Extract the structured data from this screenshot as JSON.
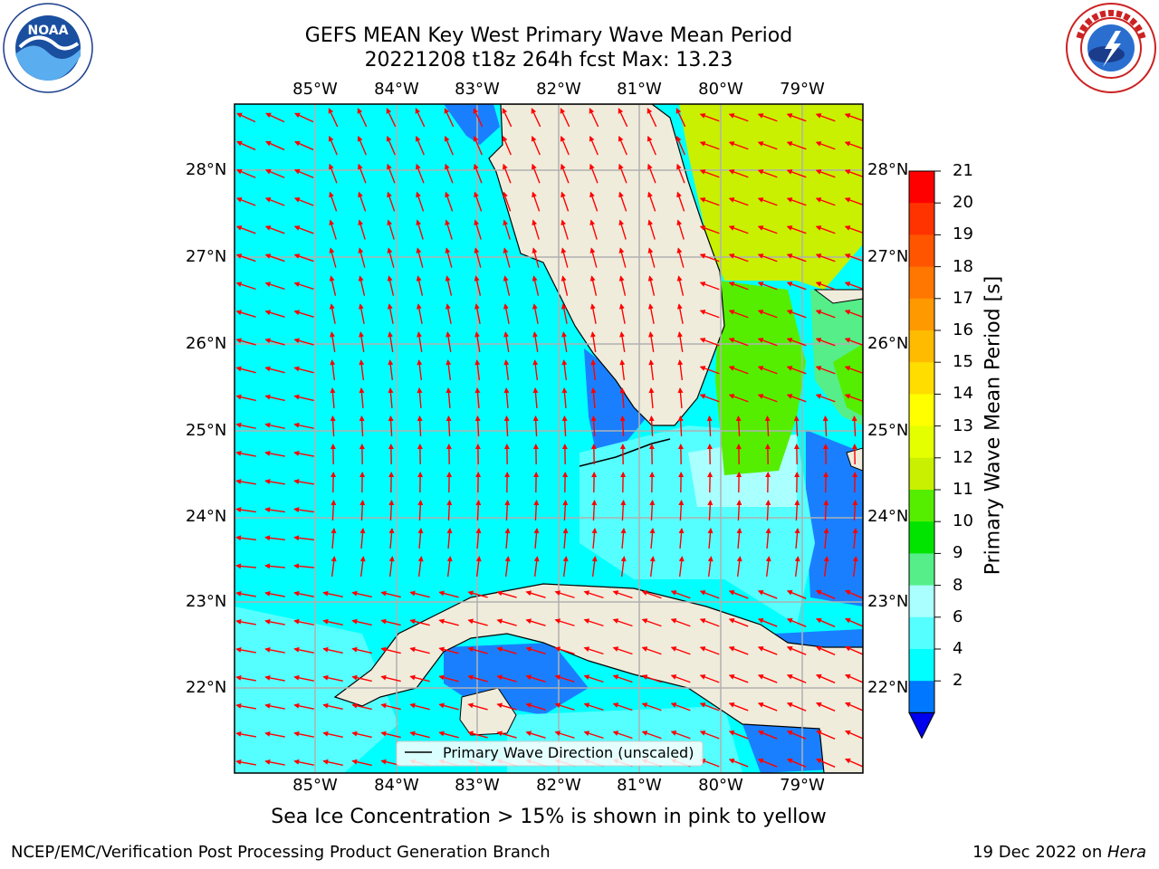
{
  "header": {
    "title_line1": "GEFS MEAN Key West Primary Wave Mean Period",
    "title_line2": "20221208 t18z 264h fcst   Max: 13.23"
  },
  "map": {
    "lon_labels": [
      "85°W",
      "84°W",
      "83°W",
      "82°W",
      "81°W",
      "80°W",
      "79°W"
    ],
    "lat_labels": [
      "28°N",
      "27°N",
      "26°N",
      "25°N",
      "24°N",
      "23°N",
      "22°N"
    ],
    "lon_range": [
      -86.0,
      -78.25
    ],
    "lat_range": [
      21.1,
      28.8
    ],
    "ocean_color": "#00ffff",
    "land_color": "#efecdc",
    "arrow_color": "#ff0000",
    "legend_label": "Primary Wave Direction (unscaled)"
  },
  "colorbar": {
    "label": "Primary Wave Mean Period [s]",
    "ticks": [
      "21",
      "20",
      "19",
      "18",
      "17",
      "16",
      "15",
      "14",
      "13",
      "12",
      "11",
      "10",
      "9",
      "8",
      "6",
      "4",
      "2"
    ],
    "colors": [
      "#ff0000",
      "#ff3300",
      "#ff5500",
      "#ff7700",
      "#ff9900",
      "#ffbb00",
      "#ffdd00",
      "#ffff00",
      "#e4ff00",
      "#c8f000",
      "#55ee00",
      "#00e400",
      "#55ee88",
      "#aaffff",
      "#55ffff",
      "#00ffff",
      "#0077ff"
    ],
    "extend_color": "#0000ee"
  },
  "caption": "Sea Ice Concentration > 15% is shown in pink to yellow",
  "footer": {
    "left": "NCEP/EMC/Verification Post Processing Product Generation Branch",
    "right_date": "19 Dec 2022 on ",
    "right_machine": "Hera"
  },
  "logos": {
    "noaa_text": "NOAA",
    "nws_logo_icon": "nws-logo-icon"
  }
}
